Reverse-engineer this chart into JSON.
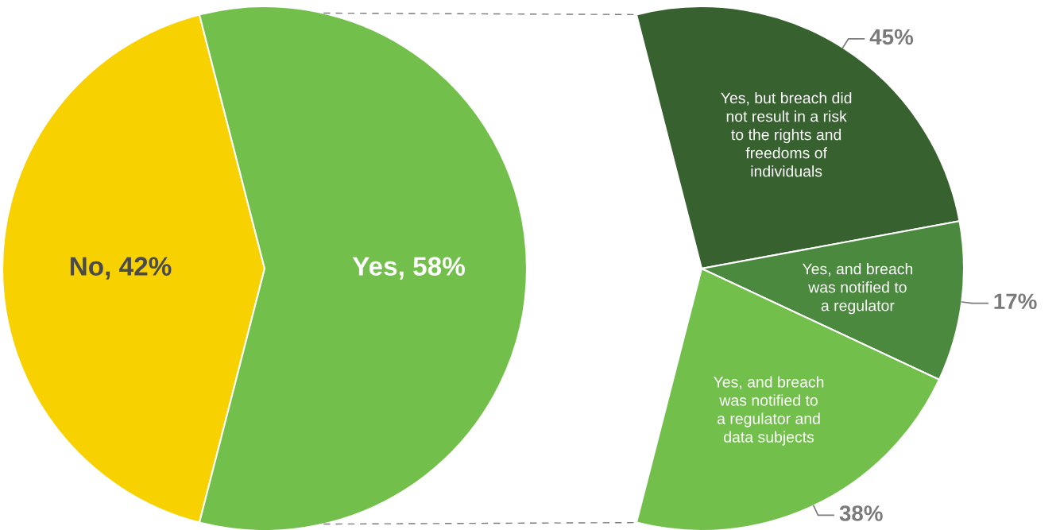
{
  "chart_data": [
    {
      "type": "pie",
      "categories": [
        "No",
        "Yes"
      ],
      "values": [
        42,
        58
      ],
      "colors": [
        "#f7d100",
        "#72bf4c"
      ],
      "value_labels": [
        "42%",
        "58%"
      ]
    },
    {
      "type": "pie",
      "categories": [
        "Yes, but breach did\nnot result in a risk\nto the rights and\nfreedoms of\nindividuals",
        "Yes, and breach\nwas notified to\na regulator",
        "Yes, and breach\nwas notified to\na regulator and\ndata subjects"
      ],
      "values": [
        45,
        17,
        38
      ],
      "colors": [
        "#37612f",
        "#4a893e",
        "#72bf4c"
      ],
      "value_labels": [
        "45%",
        "17%",
        "38%"
      ]
    }
  ]
}
